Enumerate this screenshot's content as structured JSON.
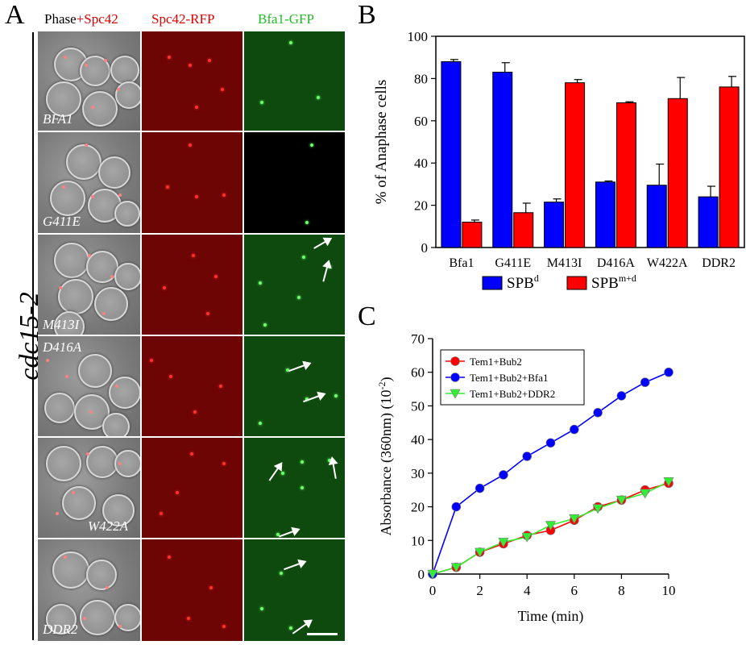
{
  "panels": {
    "a": "A",
    "b": "B",
    "c": "C"
  },
  "panel_a": {
    "columns": [
      {
        "part1": "Phase",
        "part2": "+Spc42",
        "color1": "#000000",
        "color2": "#e00000"
      },
      {
        "part1": "Spc42-RFP",
        "part2": "",
        "color1": "#e00000",
        "color2": "#e00000"
      },
      {
        "part1": "Bfa1-GFP",
        "part2": "",
        "color1": "#22bb22",
        "color2": "#22bb22"
      }
    ],
    "side_label": "cdc15-2",
    "rows": [
      "BFA1",
      "G411E",
      "M413I",
      "D416A",
      "W422A",
      "DDR2"
    ]
  },
  "chart_data": [
    {
      "type": "bar",
      "categories": [
        "Bfa1",
        "G411E",
        "M413I",
        "D416A",
        "W422A",
        "DDR2"
      ],
      "series": [
        {
          "name": "SPB",
          "sup": "d",
          "color": "#0000ff",
          "values": [
            88,
            83,
            21.5,
            31,
            29.5,
            24
          ],
          "errors": [
            1,
            4.5,
            1.5,
            0.5,
            10,
            5
          ]
        },
        {
          "name": "SPB",
          "sup": "m+d",
          "color": "#ff0000",
          "values": [
            12,
            16.5,
            78,
            68.5,
            70.5,
            76
          ],
          "errors": [
            1,
            4.5,
            1.5,
            0.5,
            10,
            5
          ]
        }
      ],
      "ylabel": "% of Anaphase cells",
      "ylim": [
        0,
        100
      ],
      "yticks": [
        0,
        20,
        40,
        60,
        80,
        100
      ],
      "legend_position": "bottom"
    },
    {
      "type": "line",
      "x": [
        0,
        1,
        2,
        3,
        4,
        5,
        6,
        7,
        8,
        9,
        10
      ],
      "series": [
        {
          "name": "Tem1+Bub2",
          "color": "#ff0000",
          "marker": "circle",
          "values": [
            0,
            2,
            6.5,
            9,
            11.5,
            13,
            16,
            20,
            22,
            25,
            27
          ]
        },
        {
          "name": "Tem1+Bub2+Bfa1",
          "color": "#0000ff",
          "marker": "circle",
          "values": [
            0,
            20,
            25.5,
            29.5,
            35,
            39,
            43,
            48,
            53,
            57,
            60
          ]
        },
        {
          "name": "Tem1+Bub2+DDR2",
          "color": "#33ee33",
          "marker": "triangle-down",
          "values": [
            0,
            2,
            6.5,
            9.5,
            11,
            14.5,
            16.5,
            19.5,
            22,
            24,
            27.5
          ]
        }
      ],
      "xlabel": "Time (min)",
      "ylabel_main": "Absorbance (360nm) (10",
      "ylabel_sup": "-2",
      "ylabel_end": ")",
      "xlim": [
        0,
        10
      ],
      "ylim": [
        0,
        70
      ],
      "xticks": [
        0,
        2,
        4,
        6,
        8,
        10
      ],
      "yticks": [
        0,
        10,
        20,
        30,
        40,
        50,
        60,
        70
      ],
      "legend_position": "top-left"
    }
  ]
}
